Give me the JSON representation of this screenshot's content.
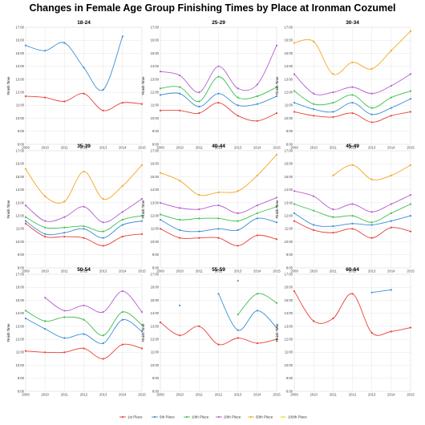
{
  "title": "Changes in Female Age Group Finishing Times by Place at Ironman Cozumel",
  "chart_data": {
    "type": "line",
    "x": [
      2009,
      2010,
      2011,
      2012,
      2013,
      2014,
      2015
    ],
    "xtick_labels": [
      "2009",
      "2010",
      "2011",
      "2012",
      "2013",
      "2014",
      "2015"
    ],
    "ylabel": "Finish Time",
    "ylim": [
      8,
      17
    ],
    "ytick_labels": [
      "8:00",
      "9:00",
      "10:00",
      "11:00",
      "12:00",
      "13:00",
      "14:00",
      "15:00",
      "16:00",
      "17:00"
    ],
    "legend": {
      "placement": "bottom",
      "entries": [
        "1st Place",
        "5th Place",
        "10th Place",
        "20th Place",
        "50th Place",
        "100th Place"
      ]
    },
    "series_colors": [
      "#e8413b",
      "#3a8fd6",
      "#3fbf4f",
      "#b65fd1",
      "#f5a623",
      "#f0e030"
    ],
    "panels": [
      {
        "title": "18-24",
        "series": [
          {
            "name": "1st Place",
            "values": [
              11.7,
              11.6,
              11.3,
              11.9,
              10.6,
              11.2,
              11.1
            ]
          },
          {
            "name": "5th Place",
            "values": [
              15.6,
              15.2,
              15.8,
              13.9,
              12.2,
              16.3,
              null
            ]
          }
        ]
      },
      {
        "title": "25-29",
        "series": [
          {
            "name": "1st Place",
            "values": [
              10.6,
              10.6,
              10.4,
              11.2,
              10.2,
              9.8,
              10.4
            ]
          },
          {
            "name": "5th Place",
            "values": [
              11.8,
              11.9,
              10.9,
              11.9,
              11.0,
              11.1,
              11.7
            ]
          },
          {
            "name": "10th Place",
            "values": [
              12.3,
              12.4,
              11.3,
              13.2,
              11.6,
              11.7,
              12.4
            ]
          },
          {
            "name": "20th Place",
            "values": [
              13.6,
              13.3,
              12.0,
              14.0,
              12.3,
              12.6,
              15.6
            ]
          }
        ]
      },
      {
        "title": "30-34",
        "series": [
          {
            "name": "1st Place",
            "values": [
              10.5,
              10.2,
              10.1,
              10.4,
              9.7,
              10.2,
              10.5
            ]
          },
          {
            "name": "5th Place",
            "values": [
              11.2,
              10.7,
              10.5,
              11.2,
              10.3,
              10.8,
              11.5
            ]
          },
          {
            "name": "10th Place",
            "values": [
              12.1,
              11.1,
              11.2,
              11.8,
              10.8,
              11.6,
              12.1
            ]
          },
          {
            "name": "20th Place",
            "values": [
              13.4,
              11.9,
              12.0,
              12.4,
              11.9,
              12.5,
              13.4
            ]
          },
          {
            "name": "50th Place",
            "values": [
              15.8,
              15.9,
              13.4,
              14.3,
              13.8,
              15.2,
              16.7
            ]
          }
        ]
      },
      {
        "title": "35-39",
        "series": [
          {
            "name": "1st Place",
            "values": [
              11.4,
              10.4,
              10.4,
              10.3,
              9.7,
              10.4,
              10.6
            ]
          },
          {
            "name": "5th Place",
            "values": [
              11.6,
              10.6,
              10.7,
              11.0,
              10.3,
              11.3,
              11.6
            ]
          },
          {
            "name": "10th Place",
            "values": [
              11.9,
              11.1,
              11.1,
              11.2,
              10.8,
              11.7,
              12.0
            ]
          },
          {
            "name": "20th Place",
            "values": [
              12.8,
              11.6,
              11.9,
              12.7,
              11.5,
              12.3,
              13.3
            ]
          },
          {
            "name": "50th Place",
            "values": [
              15.6,
              13.5,
              13.1,
              15.4,
              13.3,
              14.3,
              15.9
            ]
          }
        ]
      },
      {
        "title": "40-44",
        "series": [
          {
            "name": "1st Place",
            "values": [
              11.0,
              10.3,
              10.3,
              10.3,
              9.7,
              10.5,
              10.2
            ]
          },
          {
            "name": "5th Place",
            "values": [
              11.7,
              10.9,
              10.8,
              11.0,
              10.9,
              11.8,
              11.5
            ]
          },
          {
            "name": "10th Place",
            "values": [
              12.1,
              11.7,
              11.8,
              11.8,
              11.6,
              12.2,
              12.7
            ]
          },
          {
            "name": "20th Place",
            "values": [
              13.0,
              12.6,
              12.5,
              12.8,
              12.2,
              12.8,
              13.4
            ]
          },
          {
            "name": "50th Place",
            "values": [
              15.3,
              14.7,
              13.6,
              13.8,
              13.9,
              15.1,
              16.7
            ]
          }
        ]
      },
      {
        "title": "45-49",
        "series": [
          {
            "name": "1st Place",
            "values": [
              11.6,
              10.9,
              10.7,
              11.0,
              10.3,
              11.1,
              10.8
            ]
          },
          {
            "name": "5th Place",
            "values": [
              12.2,
              11.3,
              11.2,
              11.4,
              11.3,
              11.6,
              12.0
            ]
          },
          {
            "name": "10th Place",
            "values": [
              12.9,
              12.4,
              11.9,
              12.0,
              11.5,
              12.2,
              12.9
            ]
          },
          {
            "name": "20th Place",
            "values": [
              13.9,
              13.5,
              12.5,
              12.9,
              12.3,
              12.9,
              13.6
            ]
          },
          {
            "name": "50th Place",
            "values": [
              null,
              null,
              15.1,
              15.9,
              14.8,
              15.1,
              15.9
            ]
          }
        ]
      },
      {
        "title": "50-54",
        "series": [
          {
            "name": "1st Place",
            "values": [
              11.1,
              11.0,
              11.0,
              11.3,
              10.5,
              11.6,
              11.3
            ]
          },
          {
            "name": "5th Place",
            "values": [
              13.6,
              12.8,
              12.1,
              12.4,
              11.7,
              13.5,
              12.6
            ]
          },
          {
            "name": "10th Place",
            "values": [
              14.2,
              13.4,
              13.7,
              13.5,
              12.3,
              14.1,
              13.1
            ]
          },
          {
            "name": "20th Place",
            "values": [
              null,
              15.2,
              14.2,
              14.6,
              14.1,
              15.7,
              14.1
            ]
          }
        ]
      },
      {
        "title": "55-59",
        "series": [
          {
            "name": "1st Place",
            "values": [
              13.3,
              12.3,
              13.0,
              11.6,
              12.1,
              11.7,
              12.0
            ]
          },
          {
            "name": "5th Place",
            "values": [
              null,
              14.6,
              null,
              15.5,
              12.7,
              14.2,
              12.9
            ]
          },
          {
            "name": "10th Place",
            "values": [
              null,
              null,
              null,
              null,
              13.9,
              15.5,
              14.8
            ]
          },
          {
            "name": "20th Place",
            "values": [
              null,
              null,
              null,
              null,
              16.5,
              null,
              null
            ]
          }
        ]
      },
      {
        "title": "60-64",
        "series": [
          {
            "name": "1st Place",
            "values": [
              15.7,
              13.4,
              13.6,
              15.5,
              12.5,
              12.6,
              12.9
            ]
          },
          {
            "name": "5th Place",
            "values": [
              null,
              null,
              null,
              null,
              15.6,
              15.8,
              null
            ]
          }
        ]
      }
    ]
  }
}
